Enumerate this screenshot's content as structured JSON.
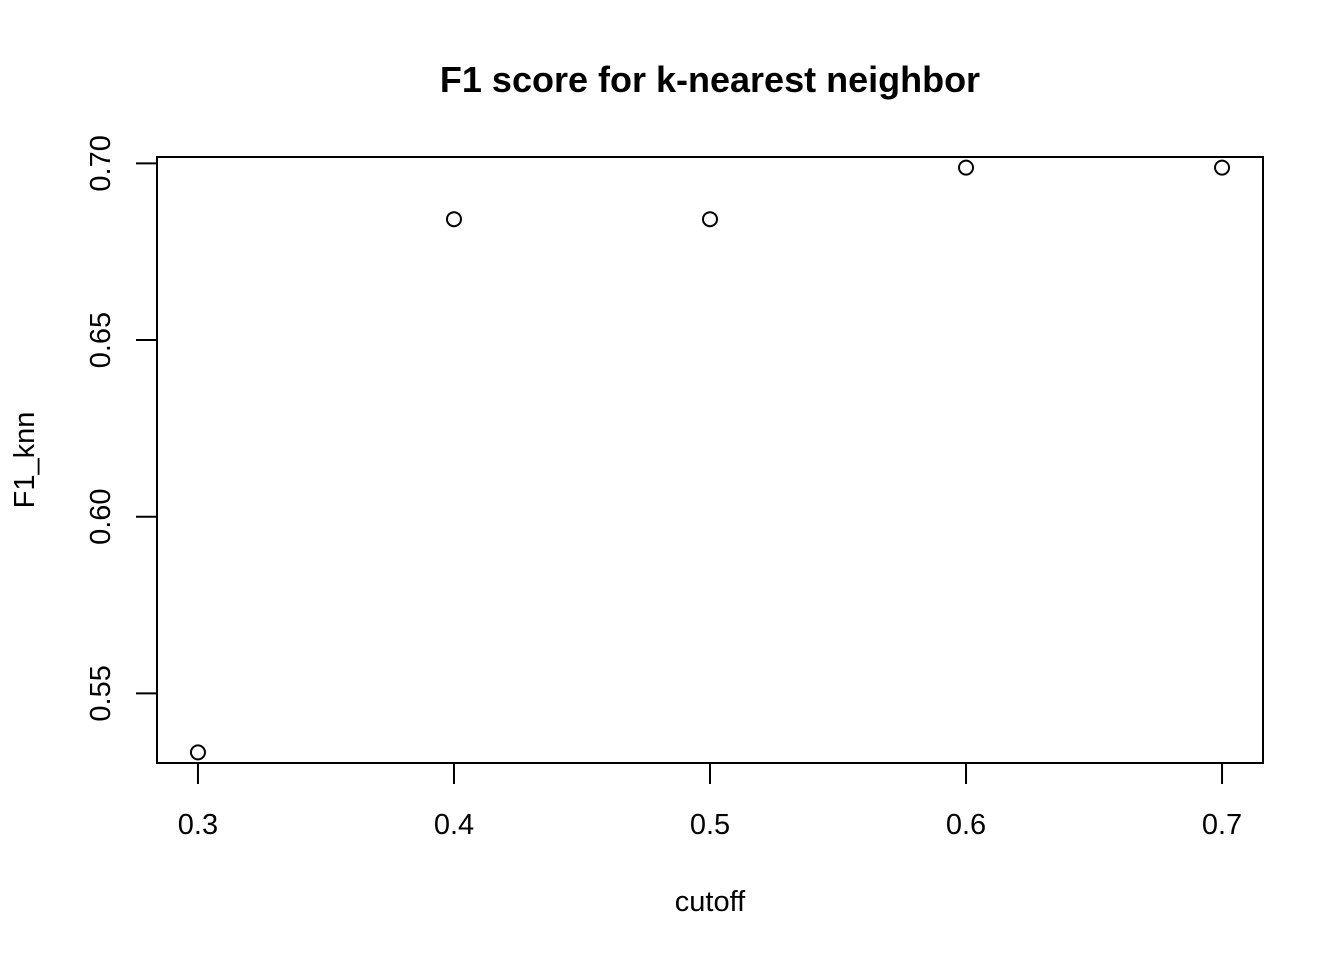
{
  "chart_data": {
    "type": "scatter",
    "title": "F1 score for k-nearest neighbor",
    "xlabel": "cutoff",
    "ylabel": "F1_knn",
    "x": [
      0.3,
      0.4,
      0.5,
      0.6,
      0.7
    ],
    "y": [
      0.5333,
      0.6842,
      0.6842,
      0.6988,
      0.6988
    ],
    "xlim": [
      0.284,
      0.716
    ],
    "ylim": [
      0.5303,
      0.7018
    ],
    "x_ticks": [
      0.3,
      0.4,
      0.5,
      0.6,
      0.7
    ],
    "x_tick_labels": [
      "0.3",
      "0.4",
      "0.5",
      "0.6",
      "0.7"
    ],
    "y_ticks": [
      0.55,
      0.6,
      0.65,
      0.7
    ],
    "y_tick_labels": [
      "0.55",
      "0.60",
      "0.65",
      "0.70"
    ],
    "grid": false,
    "legend": "none",
    "marker": "open-circle",
    "colors": {
      "points": "#000000",
      "axes": "#000000",
      "background": "#ffffff"
    }
  }
}
